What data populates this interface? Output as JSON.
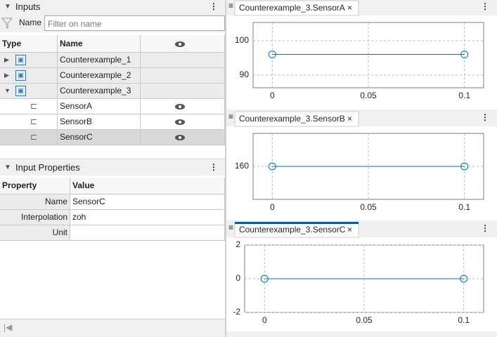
{
  "inputs_panel": {
    "title": "Inputs",
    "filter_label": "Name",
    "filter_placeholder": "Filter on name",
    "columns": [
      "Type",
      "Name"
    ],
    "rows": [
      {
        "name": "Counterexample_1"
      },
      {
        "name": "Counterexample_2"
      },
      {
        "name": "Counterexample_3",
        "children": [
          {
            "name": "SensorA"
          },
          {
            "name": "SensorB"
          },
          {
            "name": "SensorC",
            "selected": true
          }
        ]
      }
    ]
  },
  "properties_panel": {
    "title": "Input Properties",
    "columns": [
      "Property",
      "Value"
    ],
    "rows": [
      {
        "property": "Name",
        "value": "SensorC"
      },
      {
        "property": "Interpolation",
        "value": "zoh"
      },
      {
        "property": "Unit"
      }
    ]
  },
  "chart_data": [
    {
      "type": "line",
      "title": "Counterexample_3.SensorA",
      "x": [
        0,
        0.1
      ],
      "values": [
        96,
        96
      ],
      "color": "#0072bd",
      "xlim": [
        -0.01,
        0.11
      ],
      "xticks": [
        0,
        0.05,
        0.1
      ],
      "ylim": [
        86.3,
        105.3
      ],
      "yticks": [
        90,
        100
      ],
      "grid": true
    },
    {
      "type": "line",
      "title": "Counterexample_3.SensorB",
      "x": [
        0,
        0.1
      ],
      "values": [
        160,
        160
      ],
      "color": "#0072bd",
      "xlim": [
        -0.01,
        0.11
      ],
      "xticks": [
        0,
        0.05,
        0.1
      ],
      "ylim": [
        150,
        170
      ],
      "yticks": [
        160
      ],
      "grid": true
    },
    {
      "type": "line",
      "title": "Counterexample_3.SensorC",
      "x": [
        0,
        0.1
      ],
      "values": [
        0,
        0
      ],
      "color": "#0072bd",
      "xlim": [
        -0.01,
        0.11
      ],
      "xticks": [
        0,
        0.05,
        0.1
      ],
      "ylim": [
        -2,
        2
      ],
      "yticks": [
        -2,
        0,
        2
      ],
      "grid": true
    }
  ]
}
